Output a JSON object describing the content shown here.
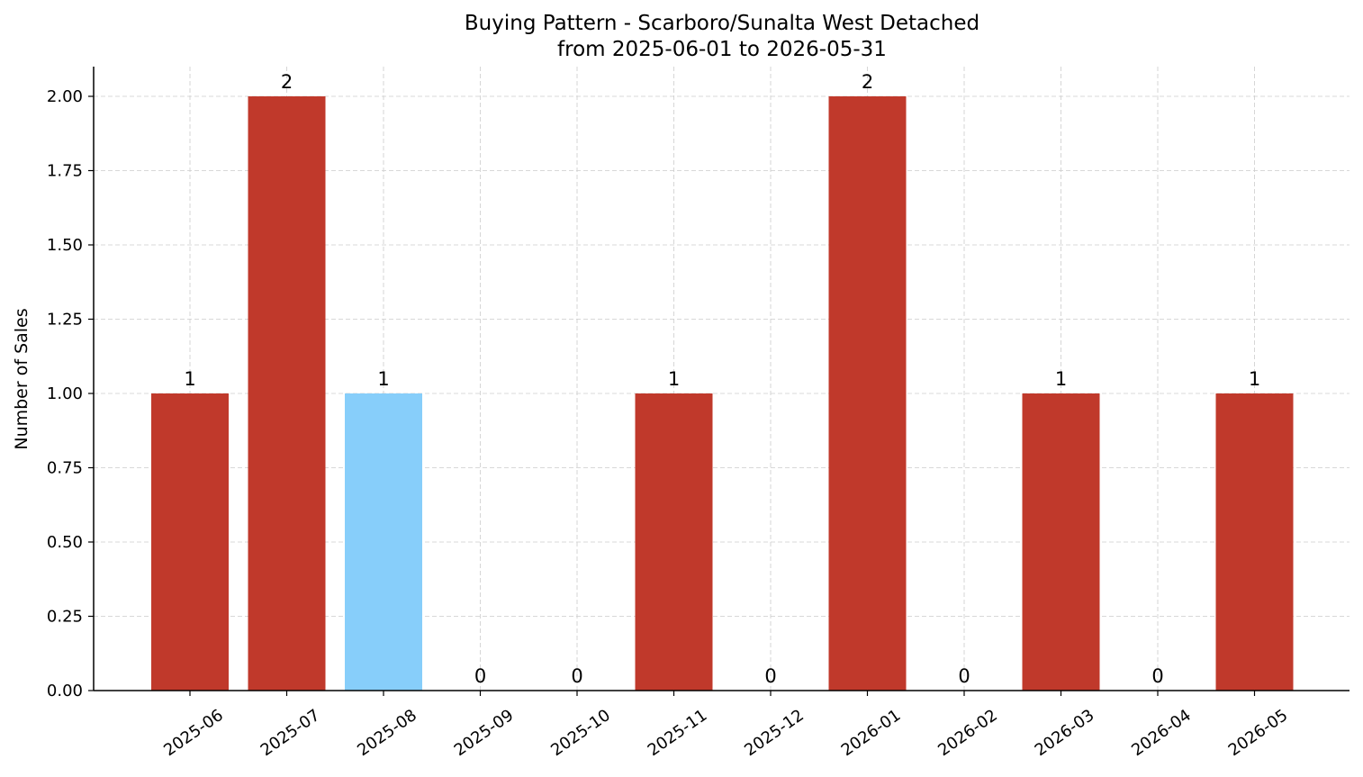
{
  "chart_data": {
    "type": "bar",
    "title": "Buying Pattern - Scarboro/Sunalta West Detached",
    "subtitle": "from 2025-06-01 to 2026-05-31",
    "xlabel": "",
    "ylabel": "Number of Sales",
    "categories": [
      "2025-06",
      "2025-07",
      "2025-08",
      "2025-09",
      "2025-10",
      "2025-11",
      "2025-12",
      "2026-01",
      "2026-02",
      "2026-03",
      "2026-04",
      "2026-05"
    ],
    "values": [
      1,
      2,
      1,
      0,
      0,
      1,
      0,
      2,
      0,
      1,
      0,
      1
    ],
    "data_labels": [
      "1",
      "2",
      "1",
      "0",
      "0",
      "1",
      "0",
      "2",
      "0",
      "1",
      "0",
      "1"
    ],
    "bar_colors": [
      "#c0392b",
      "#c0392b",
      "#87cefa",
      "#c0392b",
      "#c0392b",
      "#c0392b",
      "#c0392b",
      "#c0392b",
      "#c0392b",
      "#c0392b",
      "#c0392b",
      "#c0392b"
    ],
    "ylim": [
      0,
      2.1
    ],
    "yticks": [
      0,
      0.25,
      0.5,
      0.75,
      1.0,
      1.25,
      1.5,
      1.75,
      2.0
    ],
    "ytick_labels": [
      "0.00",
      "0.25",
      "0.50",
      "0.75",
      "1.00",
      "1.25",
      "1.50",
      "1.75",
      "2.00"
    ],
    "grid": true,
    "legend": "none"
  }
}
